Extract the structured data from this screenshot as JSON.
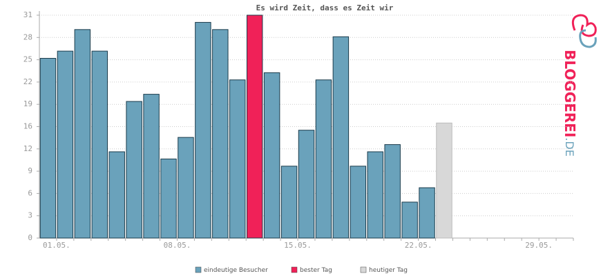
{
  "chart_data": {
    "type": "bar",
    "title": "Es wird Zeit, dass es Zeit wir",
    "categories": [
      "01.05.",
      null,
      null,
      null,
      null,
      null,
      null,
      "08.05.",
      null,
      null,
      null,
      null,
      null,
      null,
      "15.05.",
      null,
      null,
      null,
      null,
      null,
      null,
      "22.05.",
      null,
      null,
      null,
      null,
      null,
      null,
      "29.05.",
      null,
      null
    ],
    "series": [
      {
        "name": "eindeutige Besucher",
        "color": "#6aa2bb",
        "values": [
          25,
          26,
          29,
          26,
          12,
          19,
          20,
          11,
          14,
          30,
          29,
          22,
          null,
          23,
          10,
          15,
          22,
          28,
          10,
          12,
          13,
          5,
          7,
          null,
          null,
          null,
          null,
          null,
          null,
          null,
          null
        ]
      },
      {
        "name": "bester Tag",
        "color": "#f02158",
        "values": [
          null,
          null,
          null,
          null,
          null,
          null,
          null,
          null,
          null,
          null,
          null,
          null,
          31,
          null,
          null,
          null,
          null,
          null,
          null,
          null,
          null,
          null,
          null,
          null,
          null,
          null,
          null,
          null,
          null,
          null,
          null
        ]
      },
      {
        "name": "heutiger Tag",
        "color": "#d8d8d8",
        "values": [
          null,
          null,
          null,
          null,
          null,
          null,
          null,
          null,
          null,
          null,
          null,
          null,
          null,
          null,
          null,
          null,
          null,
          null,
          null,
          null,
          null,
          null,
          null,
          16,
          null,
          null,
          null,
          null,
          null,
          null,
          null
        ]
      }
    ],
    "ylim": [
      0,
      31
    ],
    "yticks": [
      0,
      {
        "value": 3.1,
        "label": "3"
      },
      {
        "value": 6.2,
        "label": "6"
      },
      {
        "value": 9.3,
        "label": "9"
      },
      {
        "value": 12.4,
        "label": "12"
      },
      {
        "value": 15.5,
        "label": "16"
      },
      {
        "value": 18.6,
        "label": "19"
      },
      {
        "value": 21.7,
        "label": "22"
      },
      {
        "value": 24.8,
        "label": "25"
      },
      {
        "value": 27.9,
        "label": "28"
      },
      31
    ],
    "grid": true
  },
  "logo": {
    "name": "BLOGGEREI",
    "tld": ".DE"
  }
}
